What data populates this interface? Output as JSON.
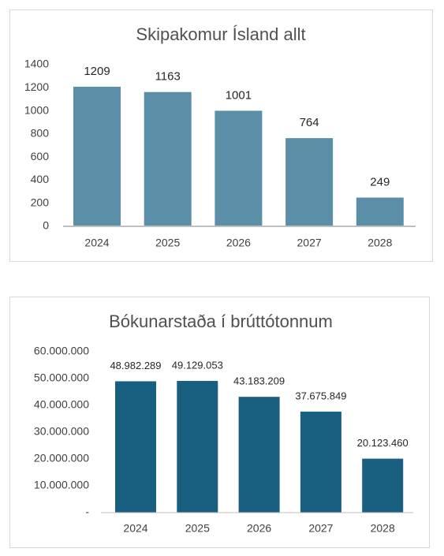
{
  "chart_data": [
    {
      "type": "bar",
      "title": "Skipakomur Ísland allt",
      "categories": [
        "2024",
        "2025",
        "2026",
        "2027",
        "2028"
      ],
      "values": [
        1209,
        1163,
        1001,
        764,
        249
      ],
      "color": "#5b8fa8",
      "ylim": [
        0,
        1400
      ],
      "yticks": [
        0,
        200,
        400,
        600,
        800,
        1000,
        1200,
        1400
      ],
      "grid": false
    },
    {
      "type": "bar",
      "title": "Bókunarstaða í brúttótonnum",
      "categories": [
        "2024",
        "2025",
        "2026",
        "2027",
        "2028"
      ],
      "values": [
        48982289,
        49129053,
        43183209,
        37675849,
        20123460
      ],
      "value_labels": [
        "48.982.289",
        "49.129.053",
        "43.183.209",
        "37.675.849",
        "20.123.460"
      ],
      "color": "#195f80",
      "ylim": [
        0,
        60000000
      ],
      "yticks": [
        {
          "value": 0,
          "label": "-"
        },
        {
          "value": 10000000,
          "label": "10.000.000"
        },
        {
          "value": 20000000,
          "label": "20.000.000"
        },
        {
          "value": 30000000,
          "label": "30.000.000"
        },
        {
          "value": 40000000,
          "label": "40.000.000"
        },
        {
          "value": 50000000,
          "label": "50.000.000"
        },
        {
          "value": 60000000,
          "label": "60.000.000"
        }
      ],
      "grid": false
    }
  ]
}
